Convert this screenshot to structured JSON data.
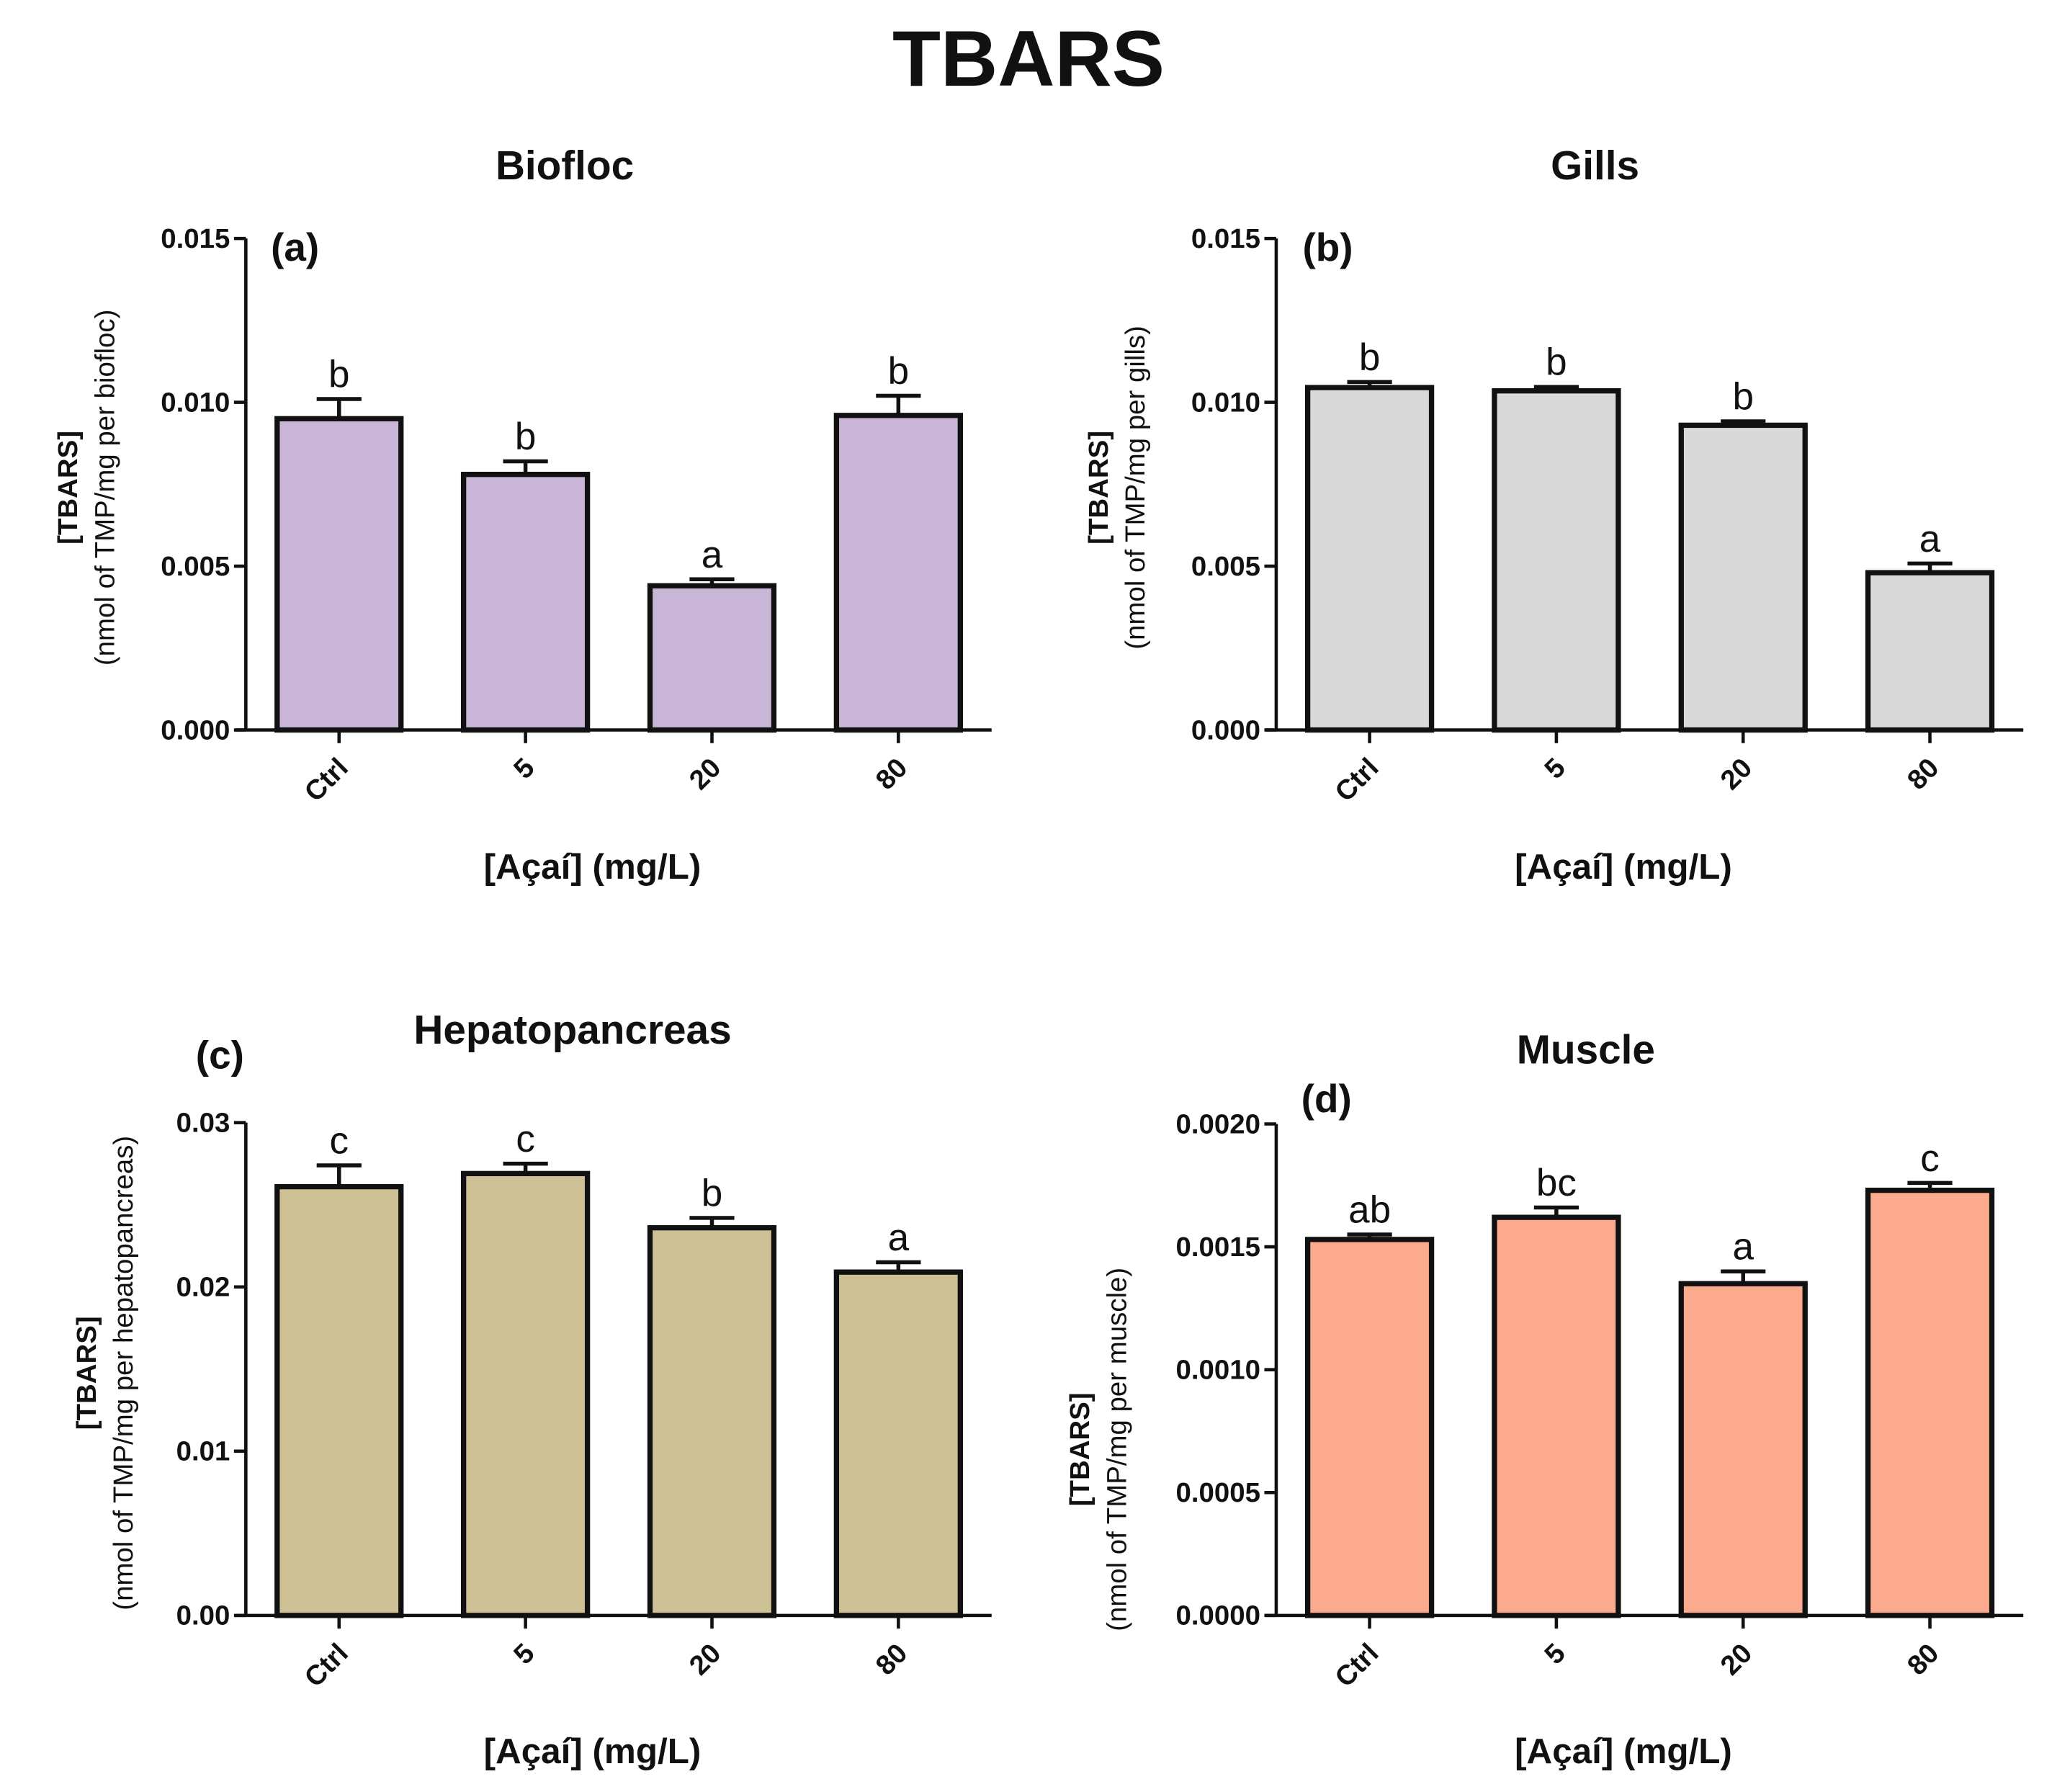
{
  "main_title": "TBARS",
  "chart_data": [
    {
      "type": "bar",
      "panel": "(a)",
      "title": "Biofloc",
      "categories": [
        "Ctrl",
        "5",
        "20",
        "80"
      ],
      "values": [
        0.0095,
        0.0078,
        0.0044,
        0.0096
      ],
      "errors": [
        0.0006,
        0.0004,
        0.0002,
        0.0006
      ],
      "significance": [
        "b",
        "b",
        "a",
        "b"
      ],
      "xlabel": "[Açaí] (mg/L)",
      "ylabel": [
        "[TBARS]",
        "(nmol of TMP/mg per biofloc)"
      ],
      "ylim": [
        0,
        0.015
      ],
      "yticks": [
        "0.000",
        "0.005",
        "0.010",
        "0.015"
      ],
      "color": "#c9b5d5"
    },
    {
      "type": "bar",
      "panel": "(b)",
      "title": "Gills",
      "categories": [
        "Ctrl",
        "5",
        "20",
        "80"
      ],
      "values": [
        0.01045,
        0.01035,
        0.0093,
        0.0048
      ],
      "errors": [
        0.00017,
        0.00012,
        0.00012,
        0.00028
      ],
      "significance": [
        "b",
        "b",
        "b",
        "a"
      ],
      "xlabel": "[Açaí] (mg/L)",
      "ylabel": [
        "[TBARS]",
        "(nmol of TMP/mg per gills)"
      ],
      "ylim": [
        0,
        0.015
      ],
      "yticks": [
        "0.000",
        "0.005",
        "0.010",
        "0.015"
      ],
      "color": "#d9d9d9"
    },
    {
      "type": "bar",
      "panel": "(c)",
      "title": "Hepatopancreas",
      "categories": [
        "Ctrl",
        "5",
        "20",
        "80"
      ],
      "values": [
        0.0261,
        0.0269,
        0.0236,
        0.0209
      ],
      "errors": [
        0.0013,
        0.0006,
        0.0006,
        0.0006
      ],
      "significance": [
        "c",
        "c",
        "b",
        "a"
      ],
      "xlabel": "[Açaí] (mg/L)",
      "ylabel": [
        "[TBARS]",
        "(nmol of TMP/mg per hepatopancreas)"
      ],
      "ylim": [
        0,
        0.03
      ],
      "yticks": [
        "0.00",
        "0.01",
        "0.02",
        "0.03"
      ],
      "color": "#cfc196"
    },
    {
      "type": "bar",
      "panel": "(d)",
      "title": "Muscle",
      "categories": [
        "Ctrl",
        "5",
        "20",
        "80"
      ],
      "values": [
        0.00153,
        0.00162,
        0.00135,
        0.00173
      ],
      "errors": [
        2e-05,
        4e-05,
        5e-05,
        3e-05
      ],
      "significance": [
        "ab",
        "bc",
        "a",
        "c"
      ],
      "xlabel": "[Açaí] (mg/L)",
      "ylabel": [
        "[TBARS]",
        "(nmol of TMP/mg per muscle)"
      ],
      "ylim": [
        0,
        0.002
      ],
      "yticks": [
        "0.0000",
        "0.0005",
        "0.0010",
        "0.0015",
        "0.0020"
      ],
      "color": "#fcaa8d"
    }
  ]
}
